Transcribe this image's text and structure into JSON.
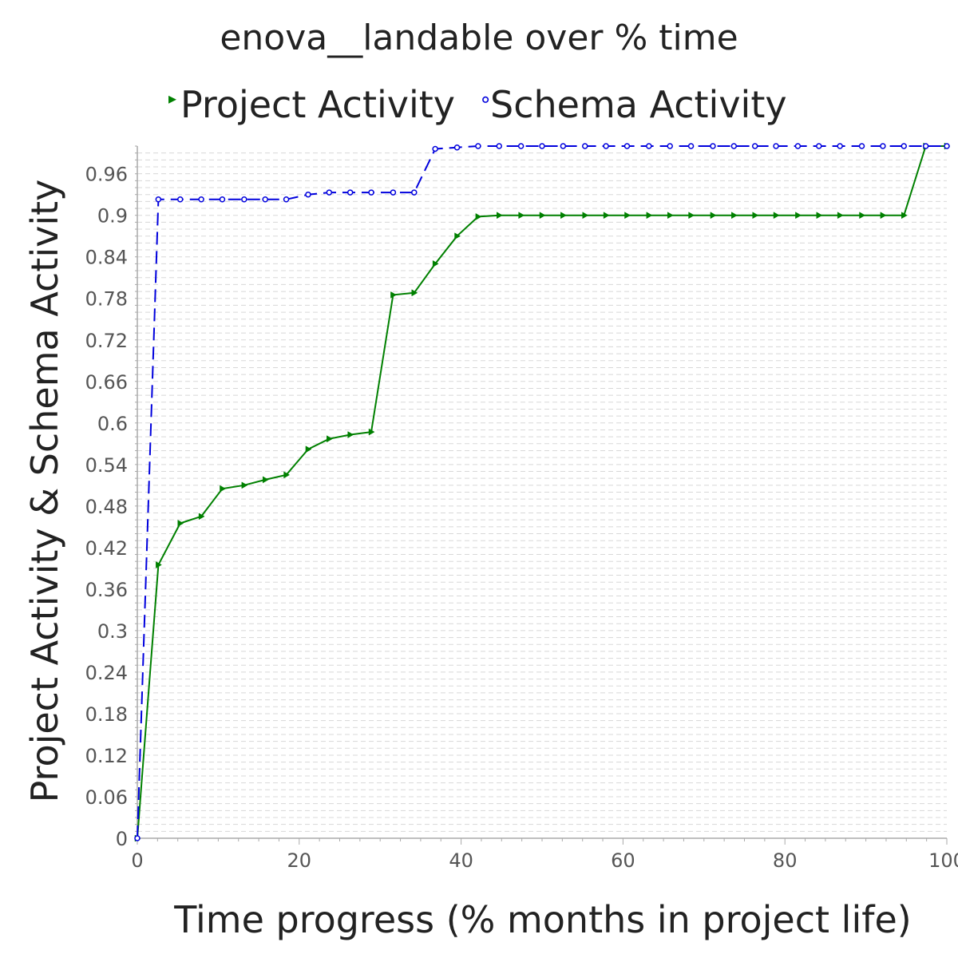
{
  "chart_data": {
    "type": "line",
    "title": "enova__landable over % time",
    "xlabel": "Time progress (% months in project life)",
    "ylabel": "Project Activity & Schema Activity",
    "xlim": [
      0,
      100
    ],
    "ylim": [
      0,
      1.0
    ],
    "xticks": [
      "0",
      "20",
      "40",
      "60",
      "80",
      "100"
    ],
    "yticks": [
      "0",
      "0.06",
      "0.12",
      "0.18",
      "0.24",
      "0.3",
      "0.36",
      "0.42",
      "0.48",
      "0.54",
      "0.6",
      "0.66",
      "0.72",
      "0.78",
      "0.84",
      "0.9",
      "0.96"
    ],
    "grid": "horizontal minor dashed",
    "legend_position": "top",
    "series": [
      {
        "name": "Project Activity",
        "color": "#008000",
        "line_style": "solid",
        "marker": "triangle-right",
        "x": [
          0,
          2.6,
          5.3,
          7.9,
          10.5,
          13.2,
          15.8,
          18.4,
          21.1,
          23.7,
          26.3,
          28.9,
          31.6,
          34.2,
          36.8,
          39.5,
          42.1,
          44.7,
          47.4,
          50.0,
          52.6,
          55.3,
          57.9,
          60.5,
          63.2,
          65.8,
          68.4,
          71.1,
          73.7,
          76.3,
          78.9,
          81.6,
          84.2,
          86.8,
          89.5,
          92.1,
          94.7,
          97.4,
          100
        ],
        "y": [
          0.0,
          0.395,
          0.455,
          0.465,
          0.505,
          0.51,
          0.518,
          0.525,
          0.562,
          0.577,
          0.583,
          0.587,
          0.785,
          0.788,
          0.83,
          0.87,
          0.898,
          0.9,
          0.9,
          0.9,
          0.9,
          0.9,
          0.9,
          0.9,
          0.9,
          0.9,
          0.9,
          0.9,
          0.9,
          0.9,
          0.9,
          0.9,
          0.9,
          0.9,
          0.9,
          0.9,
          0.9,
          1.0,
          1.0
        ]
      },
      {
        "name": "Schema Activity",
        "color": "#0000dd",
        "line_style": "dashed",
        "marker": "circle",
        "x": [
          0,
          2.6,
          5.3,
          7.9,
          10.5,
          13.2,
          15.8,
          18.4,
          21.1,
          23.7,
          26.3,
          28.9,
          31.6,
          34.2,
          36.8,
          39.5,
          42.1,
          44.7,
          47.4,
          50.0,
          52.6,
          55.3,
          57.9,
          60.5,
          63.2,
          65.8,
          68.4,
          71.1,
          73.7,
          76.3,
          78.9,
          81.6,
          84.2,
          86.8,
          89.5,
          92.1,
          94.7,
          97.4,
          100
        ],
        "y": [
          0.0,
          0.923,
          0.923,
          0.923,
          0.923,
          0.923,
          0.923,
          0.923,
          0.93,
          0.933,
          0.933,
          0.933,
          0.933,
          0.933,
          0.996,
          0.998,
          1.0,
          1.0,
          1.0,
          1.0,
          1.0,
          1.0,
          1.0,
          1.0,
          1.0,
          1.0,
          1.0,
          1.0,
          1.0,
          1.0,
          1.0,
          1.0,
          1.0,
          1.0,
          1.0,
          1.0,
          1.0,
          1.0,
          1.0
        ]
      }
    ]
  },
  "legend": {
    "project_marker_glyph": "▸",
    "schema_marker_glyph": "∘"
  },
  "colors": {
    "project": "#008000",
    "schema": "#0000dd",
    "grid": "#d8d8d8",
    "axis": "#aaaaaa"
  }
}
